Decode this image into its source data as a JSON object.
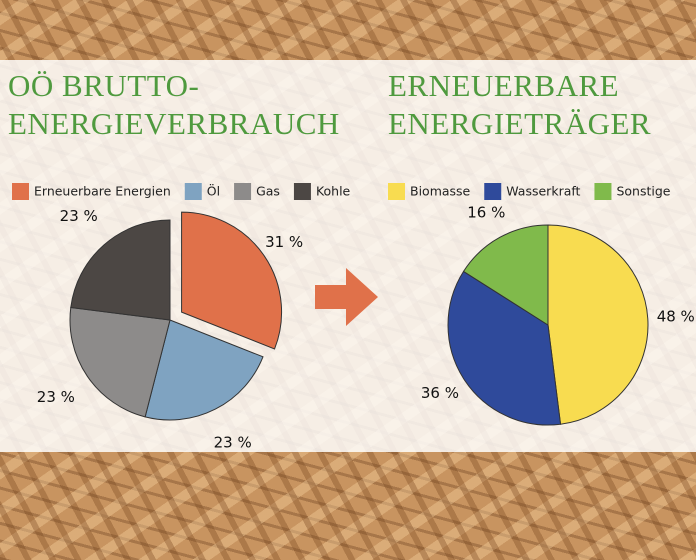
{
  "chart_data": [
    {
      "type": "pie",
      "title": [
        "OÖ BRUTTO-",
        "ENERGIEVERBRAUCH"
      ],
      "categories": [
        "Erneuerbare Energien",
        "Öl",
        "Gas",
        "Kohle"
      ],
      "values": [
        31,
        23,
        23,
        23
      ],
      "value_labels": [
        "31 %",
        "23 %",
        "23 %",
        "23 %"
      ],
      "colors": [
        "#e0714a",
        "#7fa3c1",
        "#8d8b8a",
        "#4c4744"
      ],
      "explode": [
        true,
        false,
        false,
        false
      ]
    },
    {
      "type": "pie",
      "title": [
        "ERNEUERBARE",
        "ENERGIETRÄGER"
      ],
      "categories": [
        "Biomasse",
        "Wasserkraft",
        "Sonstige"
      ],
      "values": [
        48,
        36,
        16
      ],
      "value_labels": [
        "48 %",
        "36 %",
        "16 %"
      ],
      "colors": [
        "#f8dc50",
        "#2f4a9b",
        "#80ba4b"
      ],
      "explode": [
        false,
        false,
        false
      ]
    }
  ]
}
